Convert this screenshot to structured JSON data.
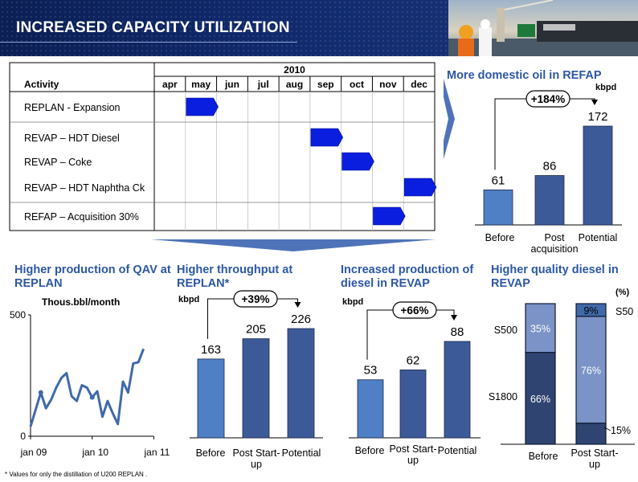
{
  "header": {
    "title": "INCREASED CAPACITY UTILIZATION"
  },
  "gantt": {
    "year": "2010",
    "activity_header": "Activity",
    "months": [
      "apr",
      "may",
      "jun",
      "jul",
      "aug",
      "sep",
      "oct",
      "nov",
      "dec"
    ],
    "rows": [
      {
        "label": "REPLAN - Expansion",
        "start_month": "may",
        "end_month": "may"
      },
      {
        "label": "REVAP – HDT Diesel",
        "start_month": "sep",
        "end_month": "sep"
      },
      {
        "label": "REVAP – Coke",
        "start_month": "oct",
        "end_month": "oct"
      },
      {
        "label": "REVAP – HDT Naphtha Ck",
        "start_month": "dec",
        "end_month": "dec"
      },
      {
        "label": "REFAP – Acquisition  30%",
        "start_month": "nov",
        "end_month": "nov"
      }
    ],
    "bar_color": "#0a1ee0"
  },
  "colors": {
    "bar_dark": "#3d5a98",
    "bar_light": "#4f7fc4",
    "title_blue": "#2c57a5",
    "line_blue": "#3f6aa8",
    "stack_top": "#7b93c6",
    "stack_dark": "#2f4470"
  },
  "chart_data": [
    {
      "id": "refap",
      "type": "bar",
      "title": "More domestic oil in REFAP",
      "ylabel": "kbpd",
      "categories": [
        "Before",
        "Post acquisition",
        "Potential"
      ],
      "values": [
        61,
        86,
        172
      ],
      "annotation": "+184%"
    },
    {
      "id": "qav",
      "type": "line",
      "title": "Higher production of QAV at REPLAN",
      "ylabel": "Thous.bbl/month",
      "ylim": [
        0,
        500
      ],
      "yticks": [
        0,
        500
      ],
      "xticks": [
        "jan 09",
        "jan 10",
        "jan 11"
      ],
      "x": [
        "2009-01",
        "2009-02",
        "2009-03",
        "2009-04",
        "2009-05",
        "2009-06",
        "2009-07",
        "2009-08",
        "2009-09",
        "2009-10",
        "2009-11",
        "2009-12",
        "2010-01",
        "2010-02",
        "2010-03",
        "2010-04",
        "2010-05",
        "2010-06",
        "2010-07",
        "2010-08",
        "2010-09",
        "2010-10",
        "2010-11"
      ],
      "values": [
        40,
        110,
        180,
        115,
        150,
        200,
        240,
        260,
        165,
        145,
        210,
        200,
        160,
        185,
        80,
        145,
        95,
        50,
        225,
        180,
        300,
        305,
        360
      ],
      "marker_points": [
        "2009-03",
        "2010-01"
      ]
    },
    {
      "id": "replan",
      "type": "bar",
      "title": "Higher throughput at REPLAN*",
      "ylabel": "kbpd",
      "categories": [
        "Before",
        "Post Start-up",
        "Potential"
      ],
      "values": [
        163,
        205,
        226
      ],
      "annotation": "+39%"
    },
    {
      "id": "revap-diesel",
      "type": "bar",
      "title": "Increased production of diesel in REVAP",
      "ylabel": "kbpd",
      "categories": [
        "Before",
        "Post Start-up",
        "Potential"
      ],
      "values": [
        53,
        62,
        88
      ],
      "annotation": "+66%"
    },
    {
      "id": "revap-quality",
      "type": "bar",
      "stacked": true,
      "title": "Higher quality diesel in REVAP",
      "ylabel": "(%)",
      "categories": [
        "Before",
        "Post Start-up"
      ],
      "series": [
        {
          "name": "S1800",
          "values": [
            66,
            15
          ]
        },
        {
          "name": "S500",
          "values": [
            35,
            76
          ]
        },
        {
          "name": "S50",
          "values": [
            0,
            9
          ]
        }
      ]
    }
  ],
  "footnote": "* Values for only the distillation of U200 REPLAN ."
}
